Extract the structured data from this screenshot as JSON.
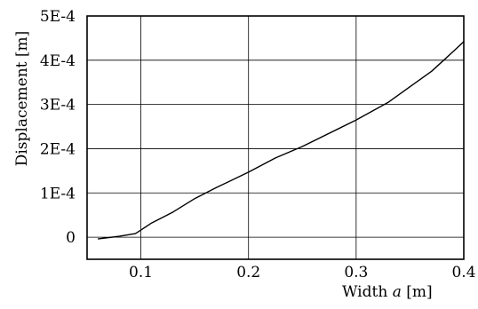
{
  "chart_data": {
    "type": "line",
    "title": "",
    "xlabel_prefix": "Width ",
    "xlabel_var": "a",
    "xlabel_suffix": " [m]",
    "ylabel": "Displacement [m]",
    "xlim": [
      0.05,
      0.4
    ],
    "ylim": [
      -5e-05,
      0.0005
    ],
    "grid": true,
    "x_ticks": [
      0.1,
      0.2,
      0.3,
      0.4
    ],
    "x_tick_labels": [
      "0.1",
      "0.2",
      "0.3",
      "0.4"
    ],
    "y_ticks": [
      0,
      0.0001,
      0.0002,
      0.0003,
      0.0004,
      0.0005
    ],
    "y_tick_labels": [
      "0",
      "1E-4",
      "2E-4",
      "3E-4",
      "4E-4",
      "5E-4"
    ],
    "series": [
      {
        "x": [
          0.06,
          0.08,
          0.095,
          0.11,
          0.13,
          0.15,
          0.17,
          0.2,
          0.225,
          0.25,
          0.3,
          0.33,
          0.35,
          0.37,
          0.385,
          0.4
        ],
        "y": [
          -4e-06,
          2e-06,
          8e-06,
          3.2e-05,
          5.7e-05,
          8.7e-05,
          0.000112,
          0.000147,
          0.000179,
          0.000205,
          0.000265,
          0.000305,
          0.00034,
          0.000375,
          0.000408,
          0.000442
        ]
      }
    ]
  }
}
